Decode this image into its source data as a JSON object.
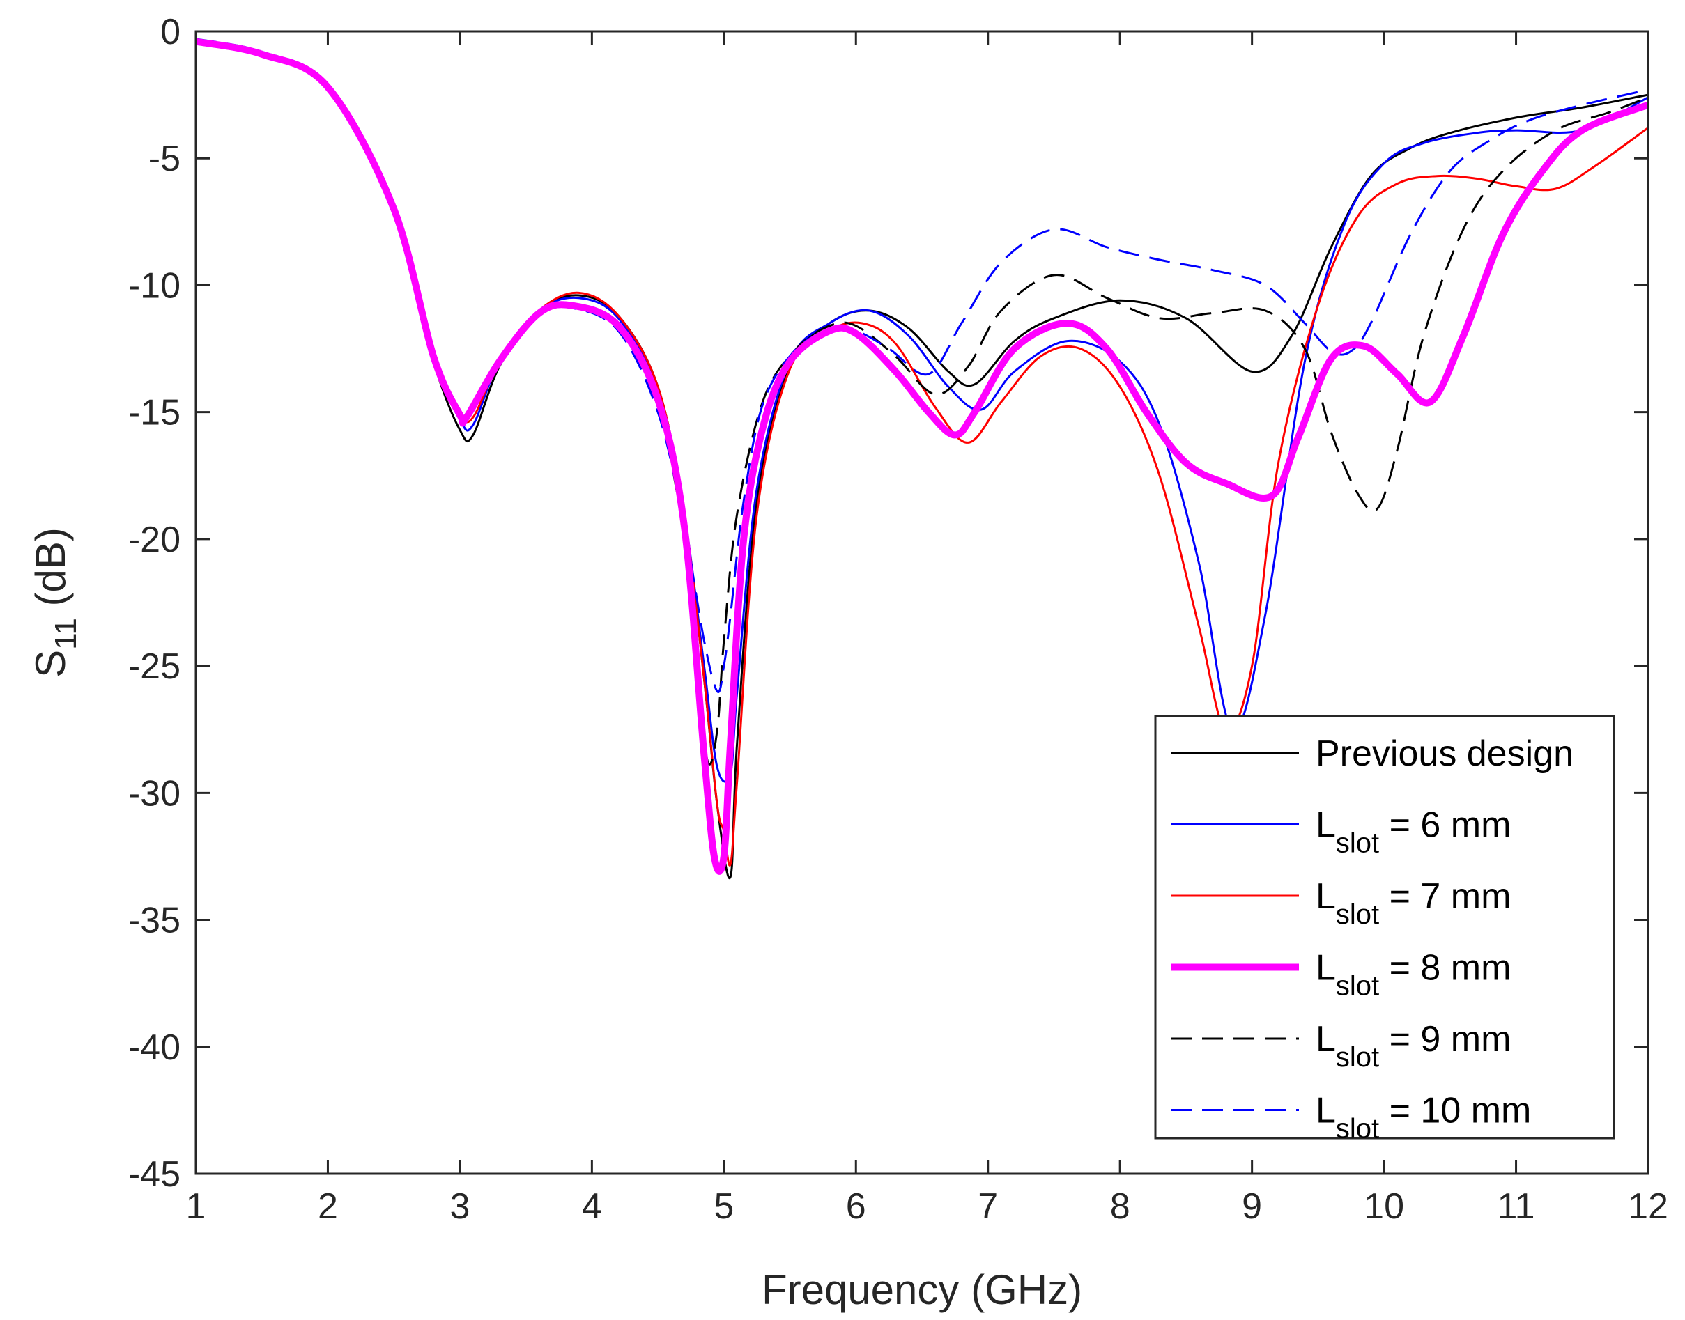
{
  "chart_data": {
    "type": "line",
    "title": "",
    "xlabel": "Frequency (GHz)",
    "ylabel_main": "S",
    "ylabel_sub": "11",
    "ylabel_unit": " (dB)",
    "xlim": [
      1,
      12
    ],
    "ylim": [
      -45,
      0
    ],
    "xticks": [
      1,
      2,
      3,
      4,
      5,
      6,
      7,
      8,
      9,
      10,
      11,
      12
    ],
    "yticks": [
      0,
      -5,
      -10,
      -15,
      -20,
      -25,
      -30,
      -35,
      -40,
      -45
    ],
    "grid": false,
    "legend_position": "bottom-right",
    "series": [
      {
        "name": "Previous design",
        "legend_main": "Previous design",
        "legend_sub": "",
        "legend_rest": "",
        "color": "#000000",
        "style": "solid",
        "width": 3,
        "x": [
          1,
          1.5,
          2,
          2.5,
          2.8,
          3.0,
          3.1,
          3.3,
          3.6,
          3.9,
          4.2,
          4.5,
          4.7,
          4.85,
          4.95,
          5.05,
          5.1,
          5.25,
          5.5,
          5.8,
          6.1,
          6.4,
          6.7,
          6.9,
          7.2,
          7.5,
          8.0,
          8.5,
          9.0,
          9.3,
          9.6,
          9.9,
          10.2,
          10.5,
          11.0,
          11.5,
          12.0
        ],
        "y": [
          -0.4,
          -0.9,
          -2.2,
          -7.2,
          -13.0,
          -15.7,
          -15.9,
          -13.2,
          -11.0,
          -10.4,
          -11.2,
          -14.0,
          -19.0,
          -25.5,
          -30.5,
          -33.3,
          -28.0,
          -18.5,
          -13.2,
          -11.5,
          -11.0,
          -11.7,
          -13.4,
          -13.9,
          -12.2,
          -11.3,
          -10.6,
          -11.3,
          -13.4,
          -12.0,
          -8.5,
          -5.7,
          -4.6,
          -4.0,
          -3.4,
          -3.0,
          -2.5
        ]
      },
      {
        "name": "Lslot = 6 mm",
        "legend_main": "L",
        "legend_sub": "slot",
        "legend_rest": " = 6 mm",
        "color": "#0000ff",
        "style": "solid",
        "width": 3,
        "x": [
          1,
          1.5,
          2,
          2.5,
          2.8,
          3.0,
          3.1,
          3.3,
          3.6,
          3.9,
          4.2,
          4.5,
          4.7,
          4.85,
          4.95,
          5.05,
          5.1,
          5.25,
          5.5,
          5.8,
          6.1,
          6.4,
          6.7,
          6.95,
          7.2,
          7.6,
          8.0,
          8.3,
          8.6,
          8.85,
          9.1,
          9.4,
          9.7,
          10.0,
          10.3,
          10.7,
          11.0,
          11.5,
          12.0
        ],
        "y": [
          -0.4,
          -0.9,
          -2.2,
          -7.0,
          -12.8,
          -15.3,
          -15.5,
          -13.0,
          -11.0,
          -10.5,
          -11.3,
          -14.2,
          -19.0,
          -25.0,
          -29.0,
          -29.2,
          -26.0,
          -18.0,
          -13.0,
          -11.5,
          -11.0,
          -12.0,
          -14.0,
          -14.9,
          -13.4,
          -12.2,
          -13.0,
          -15.5,
          -21.0,
          -27.5,
          -23.0,
          -13.0,
          -7.6,
          -5.2,
          -4.4,
          -4.0,
          -3.9,
          -3.9,
          -2.6
        ]
      },
      {
        "name": "Lslot = 7 mm",
        "legend_main": "L",
        "legend_sub": "slot",
        "legend_rest": " = 7 mm",
        "color": "#ff0000",
        "style": "solid",
        "width": 3,
        "x": [
          1,
          1.5,
          2,
          2.5,
          2.8,
          3.0,
          3.1,
          3.3,
          3.6,
          3.9,
          4.2,
          4.5,
          4.7,
          4.85,
          4.95,
          5.0,
          5.05,
          5.1,
          5.25,
          5.5,
          5.8,
          6.05,
          6.3,
          6.6,
          6.85,
          7.1,
          7.4,
          7.7,
          8.0,
          8.3,
          8.6,
          8.8,
          9.0,
          9.2,
          9.5,
          9.8,
          10.1,
          10.4,
          10.7,
          11.0,
          11.3,
          11.6,
          12.0
        ],
        "y": [
          -0.4,
          -0.9,
          -2.2,
          -7.0,
          -12.8,
          -15.0,
          -15.2,
          -13.0,
          -11.0,
          -10.3,
          -11.2,
          -14.0,
          -19.0,
          -25.5,
          -30.5,
          -31.5,
          -32.8,
          -29.5,
          -19.0,
          -13.3,
          -11.8,
          -11.5,
          -12.3,
          -14.8,
          -16.2,
          -14.6,
          -12.8,
          -12.5,
          -14.0,
          -17.5,
          -23.5,
          -27.5,
          -25.0,
          -17.0,
          -10.8,
          -7.3,
          -6.0,
          -5.7,
          -5.8,
          -6.1,
          -6.2,
          -5.3,
          -3.8
        ]
      },
      {
        "name": "Lslot = 8 mm",
        "legend_main": "L",
        "legend_sub": "slot",
        "legend_rest": " = 8 mm",
        "color": "#ff00ff",
        "style": "solid",
        "width": 10,
        "x": [
          1,
          1.5,
          2,
          2.5,
          2.8,
          3.0,
          3.05,
          3.3,
          3.6,
          3.85,
          4.2,
          4.5,
          4.7,
          4.85,
          4.93,
          5.0,
          5.05,
          5.15,
          5.3,
          5.5,
          5.8,
          6.0,
          6.3,
          6.55,
          6.75,
          6.9,
          7.2,
          7.6,
          7.9,
          8.2,
          8.5,
          8.8,
          9.15,
          9.35,
          9.6,
          9.85,
          10.1,
          10.35,
          10.6,
          10.9,
          11.2,
          11.5,
          12.0
        ],
        "y": [
          -0.4,
          -0.9,
          -2.2,
          -7.0,
          -12.8,
          -15.1,
          -15.2,
          -13.0,
          -11.1,
          -10.8,
          -11.6,
          -14.5,
          -19.5,
          -28.5,
          -32.6,
          -32.5,
          -28.0,
          -20.0,
          -15.5,
          -13.0,
          -11.8,
          -11.9,
          -13.4,
          -15.0,
          -15.9,
          -15.0,
          -12.5,
          -11.5,
          -12.5,
          -15.0,
          -17.0,
          -17.8,
          -18.3,
          -16.0,
          -12.9,
          -12.4,
          -13.5,
          -14.6,
          -12.0,
          -8.0,
          -5.5,
          -3.9,
          -2.9
        ]
      },
      {
        "name": "Lslot = 9 mm",
        "legend_main": "L",
        "legend_sub": "slot",
        "legend_rest": " = 9 mm",
        "color": "#000000",
        "style": "dashed",
        "width": 3,
        "x": [
          1,
          1.5,
          2,
          2.5,
          2.8,
          3.0,
          3.05,
          3.3,
          3.6,
          3.85,
          4.2,
          4.5,
          4.7,
          4.8,
          4.88,
          4.95,
          5.0,
          5.1,
          5.3,
          5.55,
          5.8,
          6.0,
          6.3,
          6.6,
          6.85,
          7.1,
          7.5,
          7.9,
          8.3,
          8.7,
          9.1,
          9.4,
          9.6,
          9.8,
          9.95,
          10.1,
          10.3,
          10.6,
          10.9,
          11.3,
          11.7,
          12.0
        ],
        "y": [
          -0.4,
          -0.9,
          -2.2,
          -7.0,
          -12.7,
          -15.0,
          -15.1,
          -13.0,
          -11.2,
          -10.8,
          -11.7,
          -14.8,
          -20.0,
          -25.5,
          -28.8,
          -27.5,
          -24.0,
          -19.0,
          -14.5,
          -12.5,
          -11.6,
          -11.6,
          -12.8,
          -14.3,
          -13.2,
          -11.0,
          -9.6,
          -10.5,
          -11.3,
          -11.1,
          -11.0,
          -12.5,
          -15.8,
          -18.2,
          -18.8,
          -16.5,
          -12.0,
          -7.8,
          -5.5,
          -3.9,
          -3.2,
          -2.6
        ]
      },
      {
        "name": "Lslot = 10 mm",
        "legend_main": "L",
        "legend_sub": "slot",
        "legend_rest": " = 10 mm",
        "color": "#0000ff",
        "style": "dashed",
        "width": 3,
        "x": [
          1,
          1.5,
          2,
          2.5,
          2.8,
          3.0,
          3.05,
          3.3,
          3.6,
          3.85,
          4.2,
          4.5,
          4.7,
          4.85,
          4.95,
          5.0,
          5.05,
          5.15,
          5.3,
          5.55,
          5.8,
          6.0,
          6.25,
          6.55,
          6.8,
          7.1,
          7.5,
          7.9,
          8.3,
          8.7,
          9.1,
          9.4,
          9.6,
          9.75,
          9.9,
          10.2,
          10.5,
          10.8,
          11.1,
          11.5,
          12.0
        ],
        "y": [
          -0.3,
          -0.8,
          -2.1,
          -6.9,
          -12.6,
          -15.0,
          -15.2,
          -13.1,
          -11.2,
          -10.9,
          -11.8,
          -15.0,
          -19.5,
          -24.0,
          -26.0,
          -25.0,
          -23.0,
          -18.5,
          -14.6,
          -12.5,
          -11.8,
          -11.8,
          -12.5,
          -13.5,
          -11.5,
          -9.1,
          -7.8,
          -8.5,
          -9.0,
          -9.4,
          -10.0,
          -11.5,
          -12.6,
          -12.6,
          -11.5,
          -8.0,
          -5.5,
          -4.3,
          -3.5,
          -2.9,
          -2.3
        ]
      }
    ]
  }
}
